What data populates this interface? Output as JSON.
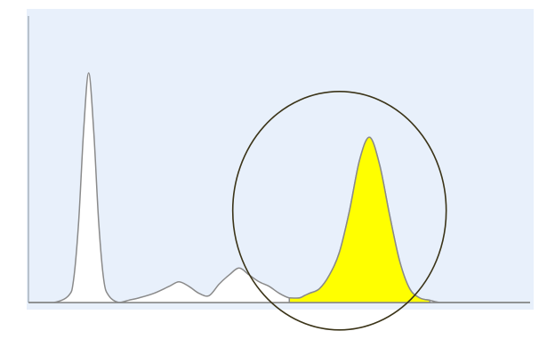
{
  "chart_data": {
    "type": "area",
    "title": "",
    "xlabel": "",
    "ylabel": "",
    "x_ticks": [],
    "y_ticks": [],
    "xlim": [
      0,
      100
    ],
    "ylim": [
      0,
      100
    ],
    "grid": false,
    "legend": "none",
    "colors": {
      "plot_background": "#e8f0fb",
      "peak_fill": "#ffffff",
      "highlight_fill": "#ffff00",
      "outline": "#8a8a8a",
      "annotation_circle": "#3b3418"
    },
    "series": [
      {
        "x": [
          0,
          5,
          8,
          9,
          10,
          11,
          12,
          13,
          14,
          15,
          16,
          18,
          20,
          22,
          25,
          28,
          30,
          32,
          34,
          36,
          38,
          40,
          42,
          44,
          46,
          48,
          50,
          52,
          54,
          55,
          56,
          58,
          60,
          62,
          64,
          66,
          68,
          70,
          72,
          74,
          76,
          78,
          80,
          82,
          85,
          90,
          95,
          100
        ],
        "y": [
          0,
          0,
          3,
          10,
          35,
          75,
          100,
          75,
          35,
          10,
          3,
          0,
          1,
          2,
          4,
          7,
          9,
          7,
          4,
          3,
          8,
          12,
          15,
          12,
          9,
          7,
          4,
          2,
          2,
          3,
          4,
          6,
          12,
          22,
          40,
          62,
          72,
          60,
          38,
          18,
          6,
          2,
          1,
          0,
          0,
          0,
          0,
          0
        ]
      }
    ],
    "highlighted_region": {
      "x_start": 52,
      "x_end": 80
    },
    "annotation": {
      "shape": "ellipse",
      "x_center": 62,
      "y_center": 40
    }
  }
}
